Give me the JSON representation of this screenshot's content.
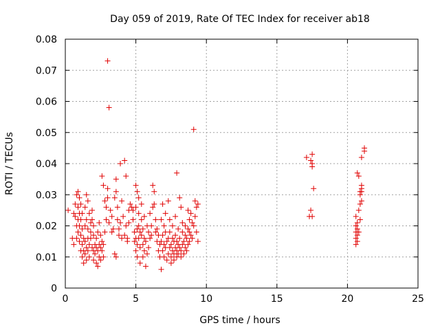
{
  "chart_data": {
    "type": "scatter",
    "title": "Day 059 of 2019, Rate Of TEC Index for receiver ab18",
    "xlabel": "GPS time / hours",
    "ylabel": "ROTI / TECUs",
    "xlim": [
      0,
      25
    ],
    "ylim": [
      0,
      0.08
    ],
    "x_ticks": [
      0,
      5,
      10,
      15,
      20,
      25
    ],
    "y_ticks": [
      0,
      0.01,
      0.02,
      0.03,
      0.04,
      0.05,
      0.06,
      0.07,
      0.08
    ],
    "x_tick_labels": [
      "0",
      "5",
      "10",
      "15",
      "20",
      "25"
    ],
    "y_tick_labels": [
      "0",
      "0.01",
      "0.02",
      "0.03",
      "0.04",
      "0.05",
      "0.06",
      "0.07",
      "0.08"
    ],
    "grid": true,
    "marker": "+",
    "color": "#e00000",
    "points": [
      [
        0.2,
        0.025
      ],
      [
        0.5,
        0.016
      ],
      [
        0.6,
        0.024
      ],
      [
        0.6,
        0.014
      ],
      [
        0.7,
        0.023
      ],
      [
        0.7,
        0.027
      ],
      [
        0.8,
        0.02
      ],
      [
        0.8,
        0.016
      ],
      [
        0.8,
        0.03
      ],
      [
        0.9,
        0.022
      ],
      [
        0.9,
        0.018
      ],
      [
        0.9,
        0.026
      ],
      [
        0.9,
        0.031
      ],
      [
        1.0,
        0.024
      ],
      [
        1.0,
        0.015
      ],
      [
        1.0,
        0.02
      ],
      [
        1.0,
        0.029
      ],
      [
        1.1,
        0.012
      ],
      [
        1.1,
        0.022
      ],
      [
        1.1,
        0.027
      ],
      [
        1.1,
        0.017
      ],
      [
        1.2,
        0.01
      ],
      [
        1.2,
        0.019
      ],
      [
        1.2,
        0.014
      ],
      [
        1.2,
        0.024
      ],
      [
        1.3,
        0.008
      ],
      [
        1.3,
        0.016
      ],
      [
        1.3,
        0.012
      ],
      [
        1.4,
        0.011
      ],
      [
        1.4,
        0.02
      ],
      [
        1.4,
        0.015
      ],
      [
        1.4,
        0.026
      ],
      [
        1.5,
        0.013
      ],
      [
        1.5,
        0.009
      ],
      [
        1.5,
        0.022
      ],
      [
        1.5,
        0.03
      ],
      [
        1.6,
        0.016
      ],
      [
        1.6,
        0.012
      ],
      [
        1.6,
        0.028
      ],
      [
        1.6,
        0.019
      ],
      [
        1.7,
        0.014
      ],
      [
        1.7,
        0.024
      ],
      [
        1.7,
        0.01
      ],
      [
        1.8,
        0.021
      ],
      [
        1.8,
        0.016
      ],
      [
        1.8,
        0.018
      ],
      [
        1.9,
        0.013
      ],
      [
        1.9,
        0.025
      ],
      [
        1.9,
        0.022
      ],
      [
        2.0,
        0.012
      ],
      [
        2.0,
        0.017
      ],
      [
        2.0,
        0.02
      ],
      [
        2.0,
        0.009
      ],
      [
        2.1,
        0.014
      ],
      [
        2.1,
        0.011
      ],
      [
        2.2,
        0.008
      ],
      [
        2.2,
        0.013
      ],
      [
        2.2,
        0.016
      ],
      [
        2.3,
        0.012
      ],
      [
        2.3,
        0.007
      ],
      [
        2.3,
        0.018
      ],
      [
        2.4,
        0.01
      ],
      [
        2.4,
        0.014
      ],
      [
        2.4,
        0.021
      ],
      [
        2.5,
        0.009
      ],
      [
        2.5,
        0.013
      ],
      [
        2.5,
        0.017
      ],
      [
        2.6,
        0.012
      ],
      [
        2.6,
        0.015
      ],
      [
        2.6,
        0.036
      ],
      [
        2.7,
        0.014
      ],
      [
        2.7,
        0.01
      ],
      [
        2.7,
        0.033
      ],
      [
        2.8,
        0.018
      ],
      [
        2.8,
        0.028
      ],
      [
        2.9,
        0.022
      ],
      [
        2.9,
        0.026
      ],
      [
        3.0,
        0.032
      ],
      [
        3.0,
        0.029
      ],
      [
        3.0,
        0.073
      ],
      [
        3.1,
        0.058
      ],
      [
        3.1,
        0.021
      ],
      [
        3.2,
        0.025
      ],
      [
        3.3,
        0.018
      ],
      [
        3.3,
        0.023
      ],
      [
        3.4,
        0.019
      ],
      [
        3.5,
        0.011
      ],
      [
        3.5,
        0.029
      ],
      [
        3.6,
        0.01
      ],
      [
        3.6,
        0.031
      ],
      [
        3.6,
        0.035
      ],
      [
        3.7,
        0.022
      ],
      [
        3.7,
        0.026
      ],
      [
        3.8,
        0.017
      ],
      [
        3.8,
        0.019
      ],
      [
        3.9,
        0.021
      ],
      [
        3.9,
        0.04
      ],
      [
        4.0,
        0.016
      ],
      [
        4.0,
        0.028
      ],
      [
        4.1,
        0.023
      ],
      [
        4.2,
        0.041
      ],
      [
        4.2,
        0.017
      ],
      [
        4.3,
        0.02
      ],
      [
        4.3,
        0.036
      ],
      [
        4.4,
        0.015
      ],
      [
        4.4,
        0.016
      ],
      [
        4.5,
        0.021
      ],
      [
        4.5,
        0.025
      ],
      [
        4.6,
        0.027
      ],
      [
        4.7,
        0.026
      ],
      [
        4.8,
        0.025
      ],
      [
        4.8,
        0.022
      ],
      [
        4.9,
        0.018
      ],
      [
        4.9,
        0.015
      ],
      [
        5.0,
        0.016
      ],
      [
        5.0,
        0.012
      ],
      [
        5.0,
        0.033
      ],
      [
        5.0,
        0.026
      ],
      [
        5.1,
        0.019
      ],
      [
        5.1,
        0.014
      ],
      [
        5.1,
        0.01
      ],
      [
        5.1,
        0.031
      ],
      [
        5.2,
        0.02
      ],
      [
        5.2,
        0.016
      ],
      [
        5.2,
        0.024
      ],
      [
        5.2,
        0.029
      ],
      [
        5.3,
        0.008
      ],
      [
        5.3,
        0.013
      ],
      [
        5.3,
        0.018
      ],
      [
        5.4,
        0.022
      ],
      [
        5.4,
        0.017
      ],
      [
        5.4,
        0.027
      ],
      [
        5.5,
        0.014
      ],
      [
        5.5,
        0.01
      ],
      [
        5.5,
        0.019
      ],
      [
        5.6,
        0.023
      ],
      [
        5.6,
        0.012
      ],
      [
        5.6,
        0.016
      ],
      [
        5.7,
        0.007
      ],
      [
        5.7,
        0.015
      ],
      [
        5.8,
        0.011
      ],
      [
        5.8,
        0.02
      ],
      [
        5.9,
        0.013
      ],
      [
        5.9,
        0.018
      ],
      [
        6.0,
        0.016
      ],
      [
        6.0,
        0.024
      ],
      [
        6.1,
        0.017
      ],
      [
        6.1,
        0.02
      ],
      [
        6.2,
        0.026
      ],
      [
        6.2,
        0.033
      ],
      [
        6.3,
        0.031
      ],
      [
        6.3,
        0.027
      ],
      [
        6.4,
        0.018
      ],
      [
        6.4,
        0.022
      ],
      [
        6.5,
        0.015
      ],
      [
        6.5,
        0.019
      ],
      [
        6.6,
        0.012
      ],
      [
        6.6,
        0.017
      ],
      [
        6.7,
        0.014
      ],
      [
        6.7,
        0.01
      ],
      [
        6.8,
        0.006
      ],
      [
        6.8,
        0.015
      ],
      [
        6.8,
        0.022
      ],
      [
        6.9,
        0.012
      ],
      [
        6.9,
        0.017
      ],
      [
        6.9,
        0.027
      ],
      [
        7.0,
        0.01
      ],
      [
        7.0,
        0.014
      ],
      [
        7.0,
        0.02
      ],
      [
        7.1,
        0.013
      ],
      [
        7.1,
        0.018
      ],
      [
        7.1,
        0.024
      ],
      [
        7.2,
        0.015
      ],
      [
        7.2,
        0.009
      ],
      [
        7.3,
        0.011
      ],
      [
        7.3,
        0.016
      ],
      [
        7.3,
        0.028
      ],
      [
        7.4,
        0.013
      ],
      [
        7.4,
        0.018
      ],
      [
        7.4,
        0.022
      ],
      [
        7.5,
        0.01
      ],
      [
        7.5,
        0.014
      ],
      [
        7.5,
        0.008
      ],
      [
        7.6,
        0.012
      ],
      [
        7.6,
        0.016
      ],
      [
        7.6,
        0.02
      ],
      [
        7.7,
        0.011
      ],
      [
        7.7,
        0.009
      ],
      [
        7.7,
        0.015
      ],
      [
        7.8,
        0.013
      ],
      [
        7.8,
        0.017
      ],
      [
        7.8,
        0.023
      ],
      [
        7.9,
        0.012
      ],
      [
        7.9,
        0.01
      ],
      [
        7.9,
        0.015
      ],
      [
        7.9,
        0.037
      ],
      [
        8.0,
        0.014
      ],
      [
        8.0,
        0.011
      ],
      [
        8.0,
        0.019
      ],
      [
        8.1,
        0.013
      ],
      [
        8.1,
        0.016
      ],
      [
        8.1,
        0.029
      ],
      [
        8.2,
        0.012
      ],
      [
        8.2,
        0.01
      ],
      [
        8.2,
        0.026
      ],
      [
        8.3,
        0.014
      ],
      [
        8.3,
        0.018
      ],
      [
        8.3,
        0.021
      ],
      [
        8.4,
        0.011
      ],
      [
        8.4,
        0.015
      ],
      [
        8.5,
        0.013
      ],
      [
        8.5,
        0.017
      ],
      [
        8.5,
        0.02
      ],
      [
        8.6,
        0.012
      ],
      [
        8.6,
        0.016
      ],
      [
        8.7,
        0.014
      ],
      [
        8.7,
        0.019
      ],
      [
        8.7,
        0.025
      ],
      [
        8.8,
        0.015
      ],
      [
        8.8,
        0.018
      ],
      [
        8.8,
        0.022
      ],
      [
        8.9,
        0.017
      ],
      [
        8.9,
        0.024
      ],
      [
        9.0,
        0.016
      ],
      [
        9.0,
        0.021
      ],
      [
        9.1,
        0.051
      ],
      [
        9.1,
        0.02
      ],
      [
        9.2,
        0.023
      ],
      [
        9.2,
        0.028
      ],
      [
        9.3,
        0.018
      ],
      [
        9.3,
        0.026
      ],
      [
        9.4,
        0.027
      ],
      [
        9.4,
        0.015
      ],
      [
        17.1,
        0.042
      ],
      [
        17.3,
        0.023
      ],
      [
        17.4,
        0.025
      ],
      [
        17.4,
        0.041
      ],
      [
        17.5,
        0.043
      ],
      [
        17.5,
        0.039
      ],
      [
        17.5,
        0.023
      ],
      [
        17.5,
        0.04
      ],
      [
        17.6,
        0.032
      ],
      [
        20.6,
        0.023
      ],
      [
        20.6,
        0.02
      ],
      [
        20.6,
        0.018
      ],
      [
        20.6,
        0.016
      ],
      [
        20.6,
        0.014
      ],
      [
        20.7,
        0.021
      ],
      [
        20.7,
        0.019
      ],
      [
        20.7,
        0.017
      ],
      [
        20.7,
        0.015
      ],
      [
        20.7,
        0.037
      ],
      [
        20.8,
        0.036
      ],
      [
        20.8,
        0.025
      ],
      [
        20.9,
        0.027
      ],
      [
        20.9,
        0.03
      ],
      [
        20.9,
        0.031
      ],
      [
        21.0,
        0.028
      ],
      [
        21.0,
        0.033
      ],
      [
        21.0,
        0.042
      ],
      [
        21.0,
        0.031
      ],
      [
        21.0,
        0.032
      ],
      [
        21.2,
        0.044
      ],
      [
        21.2,
        0.045
      ],
      [
        20.9,
        0.022
      ],
      [
        20.8,
        0.018
      ]
    ]
  }
}
